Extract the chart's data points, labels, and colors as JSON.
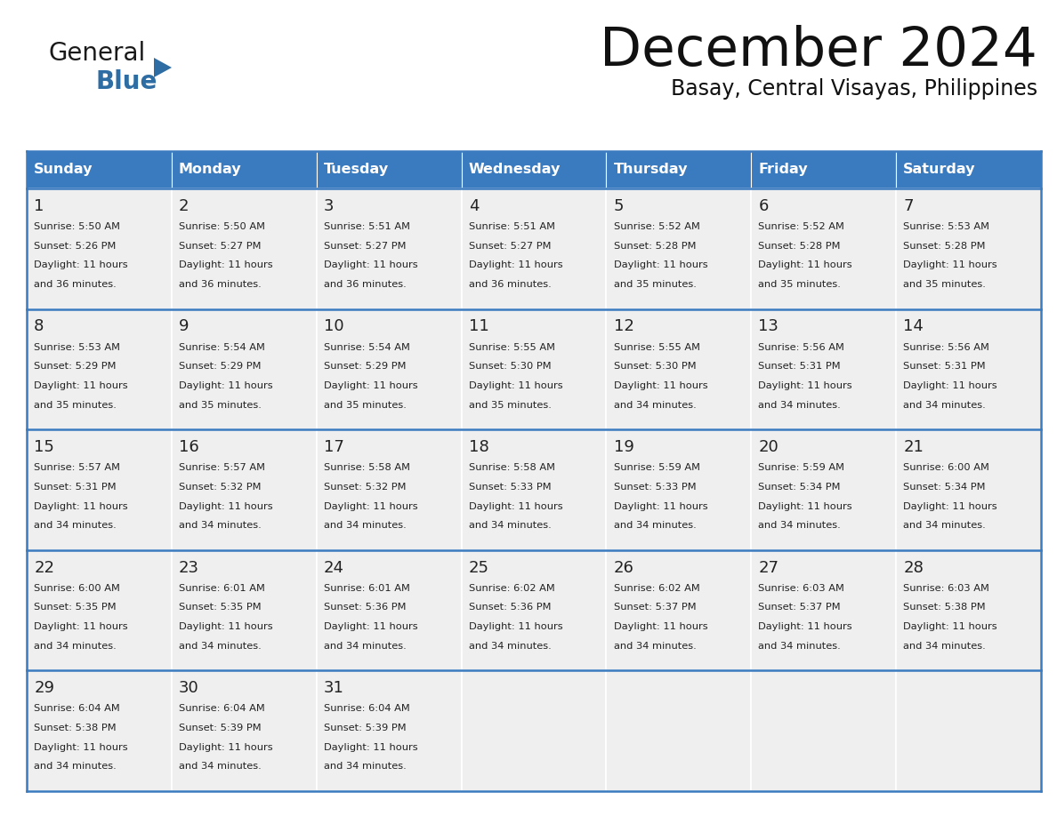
{
  "title": "December 2024",
  "subtitle": "Basay, Central Visayas, Philippines",
  "header_color": "#3a7abf",
  "header_text_color": "#ffffff",
  "day_names": [
    "Sunday",
    "Monday",
    "Tuesday",
    "Wednesday",
    "Thursday",
    "Friday",
    "Saturday"
  ],
  "bg_color": "#ffffff",
  "cell_bg_color": "#efefef",
  "border_color": "#3a7abf",
  "text_color": "#222222",
  "days": [
    {
      "day": 1,
      "col": 0,
      "row": 0,
      "sunrise": "5:50 AM",
      "sunset": "5:26 PM",
      "daylight_hours": 11,
      "daylight_minutes": 36
    },
    {
      "day": 2,
      "col": 1,
      "row": 0,
      "sunrise": "5:50 AM",
      "sunset": "5:27 PM",
      "daylight_hours": 11,
      "daylight_minutes": 36
    },
    {
      "day": 3,
      "col": 2,
      "row": 0,
      "sunrise": "5:51 AM",
      "sunset": "5:27 PM",
      "daylight_hours": 11,
      "daylight_minutes": 36
    },
    {
      "day": 4,
      "col": 3,
      "row": 0,
      "sunrise": "5:51 AM",
      "sunset": "5:27 PM",
      "daylight_hours": 11,
      "daylight_minutes": 36
    },
    {
      "day": 5,
      "col": 4,
      "row": 0,
      "sunrise": "5:52 AM",
      "sunset": "5:28 PM",
      "daylight_hours": 11,
      "daylight_minutes": 35
    },
    {
      "day": 6,
      "col": 5,
      "row": 0,
      "sunrise": "5:52 AM",
      "sunset": "5:28 PM",
      "daylight_hours": 11,
      "daylight_minutes": 35
    },
    {
      "day": 7,
      "col": 6,
      "row": 0,
      "sunrise": "5:53 AM",
      "sunset": "5:28 PM",
      "daylight_hours": 11,
      "daylight_minutes": 35
    },
    {
      "day": 8,
      "col": 0,
      "row": 1,
      "sunrise": "5:53 AM",
      "sunset": "5:29 PM",
      "daylight_hours": 11,
      "daylight_minutes": 35
    },
    {
      "day": 9,
      "col": 1,
      "row": 1,
      "sunrise": "5:54 AM",
      "sunset": "5:29 PM",
      "daylight_hours": 11,
      "daylight_minutes": 35
    },
    {
      "day": 10,
      "col": 2,
      "row": 1,
      "sunrise": "5:54 AM",
      "sunset": "5:29 PM",
      "daylight_hours": 11,
      "daylight_minutes": 35
    },
    {
      "day": 11,
      "col": 3,
      "row": 1,
      "sunrise": "5:55 AM",
      "sunset": "5:30 PM",
      "daylight_hours": 11,
      "daylight_minutes": 35
    },
    {
      "day": 12,
      "col": 4,
      "row": 1,
      "sunrise": "5:55 AM",
      "sunset": "5:30 PM",
      "daylight_hours": 11,
      "daylight_minutes": 34
    },
    {
      "day": 13,
      "col": 5,
      "row": 1,
      "sunrise": "5:56 AM",
      "sunset": "5:31 PM",
      "daylight_hours": 11,
      "daylight_minutes": 34
    },
    {
      "day": 14,
      "col": 6,
      "row": 1,
      "sunrise": "5:56 AM",
      "sunset": "5:31 PM",
      "daylight_hours": 11,
      "daylight_minutes": 34
    },
    {
      "day": 15,
      "col": 0,
      "row": 2,
      "sunrise": "5:57 AM",
      "sunset": "5:31 PM",
      "daylight_hours": 11,
      "daylight_minutes": 34
    },
    {
      "day": 16,
      "col": 1,
      "row": 2,
      "sunrise": "5:57 AM",
      "sunset": "5:32 PM",
      "daylight_hours": 11,
      "daylight_minutes": 34
    },
    {
      "day": 17,
      "col": 2,
      "row": 2,
      "sunrise": "5:58 AM",
      "sunset": "5:32 PM",
      "daylight_hours": 11,
      "daylight_minutes": 34
    },
    {
      "day": 18,
      "col": 3,
      "row": 2,
      "sunrise": "5:58 AM",
      "sunset": "5:33 PM",
      "daylight_hours": 11,
      "daylight_minutes": 34
    },
    {
      "day": 19,
      "col": 4,
      "row": 2,
      "sunrise": "5:59 AM",
      "sunset": "5:33 PM",
      "daylight_hours": 11,
      "daylight_minutes": 34
    },
    {
      "day": 20,
      "col": 5,
      "row": 2,
      "sunrise": "5:59 AM",
      "sunset": "5:34 PM",
      "daylight_hours": 11,
      "daylight_minutes": 34
    },
    {
      "day": 21,
      "col": 6,
      "row": 2,
      "sunrise": "6:00 AM",
      "sunset": "5:34 PM",
      "daylight_hours": 11,
      "daylight_minutes": 34
    },
    {
      "day": 22,
      "col": 0,
      "row": 3,
      "sunrise": "6:00 AM",
      "sunset": "5:35 PM",
      "daylight_hours": 11,
      "daylight_minutes": 34
    },
    {
      "day": 23,
      "col": 1,
      "row": 3,
      "sunrise": "6:01 AM",
      "sunset": "5:35 PM",
      "daylight_hours": 11,
      "daylight_minutes": 34
    },
    {
      "day": 24,
      "col": 2,
      "row": 3,
      "sunrise": "6:01 AM",
      "sunset": "5:36 PM",
      "daylight_hours": 11,
      "daylight_minutes": 34
    },
    {
      "day": 25,
      "col": 3,
      "row": 3,
      "sunrise": "6:02 AM",
      "sunset": "5:36 PM",
      "daylight_hours": 11,
      "daylight_minutes": 34
    },
    {
      "day": 26,
      "col": 4,
      "row": 3,
      "sunrise": "6:02 AM",
      "sunset": "5:37 PM",
      "daylight_hours": 11,
      "daylight_minutes": 34
    },
    {
      "day": 27,
      "col": 5,
      "row": 3,
      "sunrise": "6:03 AM",
      "sunset": "5:37 PM",
      "daylight_hours": 11,
      "daylight_minutes": 34
    },
    {
      "day": 28,
      "col": 6,
      "row": 3,
      "sunrise": "6:03 AM",
      "sunset": "5:38 PM",
      "daylight_hours": 11,
      "daylight_minutes": 34
    },
    {
      "day": 29,
      "col": 0,
      "row": 4,
      "sunrise": "6:04 AM",
      "sunset": "5:38 PM",
      "daylight_hours": 11,
      "daylight_minutes": 34
    },
    {
      "day": 30,
      "col": 1,
      "row": 4,
      "sunrise": "6:04 AM",
      "sunset": "5:39 PM",
      "daylight_hours": 11,
      "daylight_minutes": 34
    },
    {
      "day": 31,
      "col": 2,
      "row": 4,
      "sunrise": "6:04 AM",
      "sunset": "5:39 PM",
      "daylight_hours": 11,
      "daylight_minutes": 34
    }
  ]
}
